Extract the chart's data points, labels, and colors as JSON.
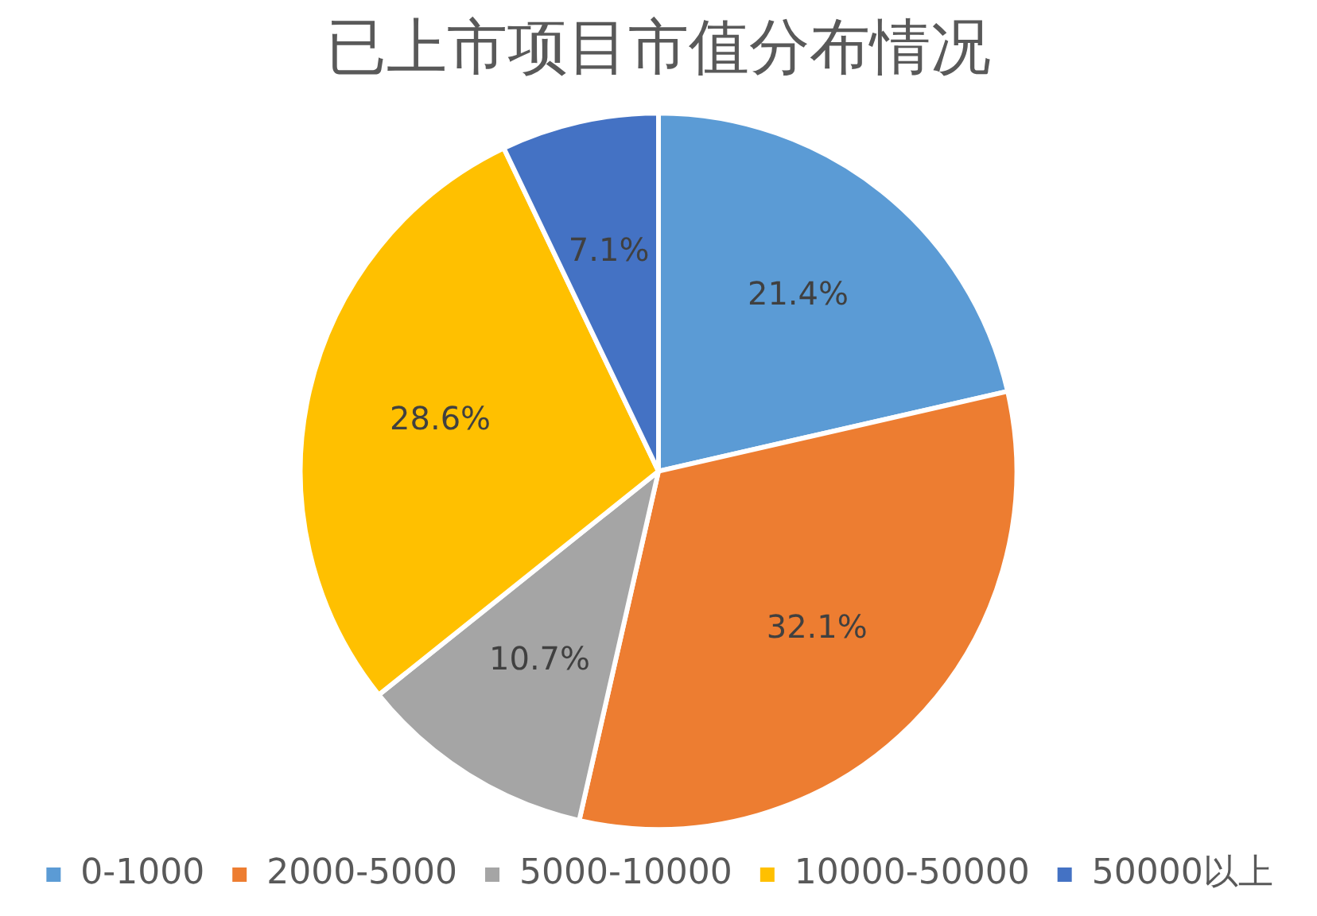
{
  "chart_data": {
    "type": "pie",
    "title": "已上市项目市值分布情况",
    "categories": [
      "0-1000",
      "2000-5000",
      "5000-10000",
      "10000-50000",
      "50000以上"
    ],
    "values": [
      21.4,
      32.1,
      10.7,
      28.6,
      7.1
    ],
    "colors": [
      "#5b9bd5",
      "#ed7d31",
      "#a5a5a5",
      "#ffc000",
      "#4472c4"
    ],
    "value_labels": [
      "21.4%",
      "32.1%",
      "10.7%",
      "28.6%",
      "7.1%"
    ],
    "legend": "bottom"
  }
}
